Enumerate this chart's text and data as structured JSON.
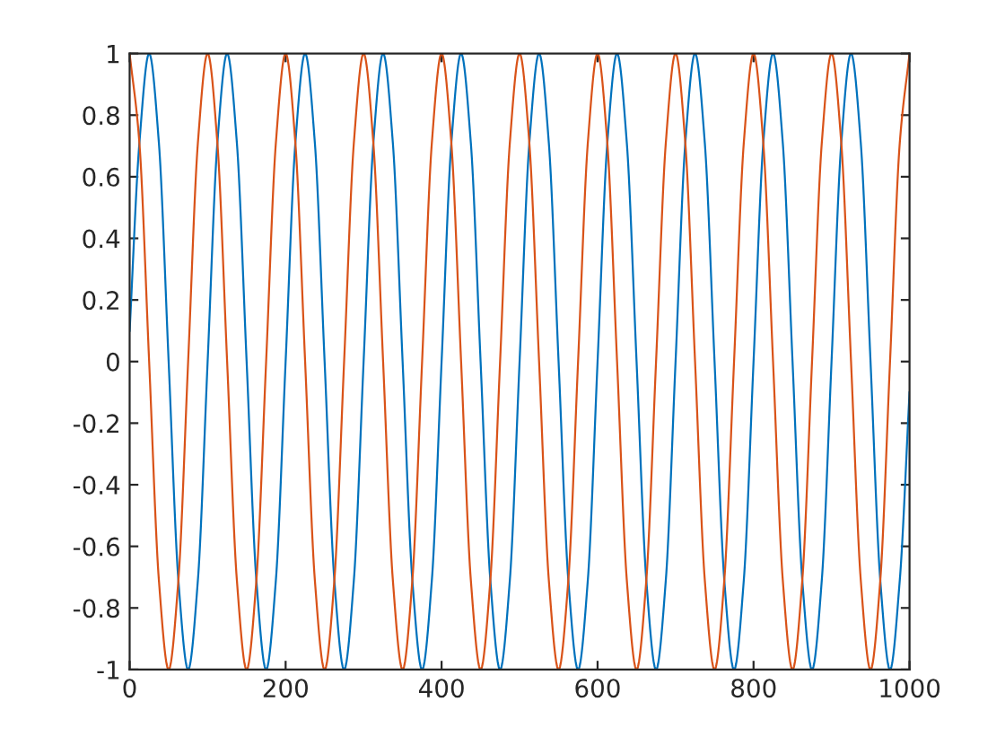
{
  "chart_data": {
    "type": "line",
    "x": [
      0,
      12.5,
      25,
      37.5,
      50,
      62.5,
      75,
      87.5,
      100,
      112.5,
      125,
      137.5,
      150,
      162.5,
      175,
      187.5,
      200,
      212.5,
      225,
      237.5,
      250,
      262.5,
      275,
      287.5,
      300,
      312.5,
      325,
      337.5,
      350,
      362.5,
      375,
      387.5,
      400,
      412.5,
      425,
      437.5,
      450,
      462.5,
      475,
      487.5,
      500,
      512.5,
      525,
      537.5,
      550,
      562.5,
      575,
      587.5,
      600,
      612.5,
      625,
      637.5,
      650,
      662.5,
      675,
      687.5,
      700,
      712.5,
      725,
      737.5,
      750,
      762.5,
      775,
      787.5,
      800,
      812.5,
      825,
      837.5,
      850,
      862.5,
      875,
      887.5,
      900,
      912.5,
      925,
      937.5,
      950,
      962.5,
      975,
      987.5,
      1000
    ],
    "series": [
      {
        "color": "#0072bd",
        "values": [
          0.1,
          0.71,
          1,
          0.71,
          0,
          -0.71,
          -1,
          -0.71,
          0,
          0.71,
          1,
          0.71,
          0,
          -0.71,
          -1,
          -0.71,
          0,
          0.71,
          1,
          0.71,
          0,
          -0.71,
          -1,
          -0.71,
          0,
          0.71,
          1,
          0.71,
          0,
          -0.71,
          -1,
          -0.71,
          0,
          0.71,
          1,
          0.71,
          0,
          -0.71,
          -1,
          -0.71,
          0,
          0.71,
          1,
          0.71,
          0,
          -0.71,
          -1,
          -0.71,
          0,
          0.71,
          1,
          0.71,
          0,
          -0.71,
          -1,
          -0.71,
          0,
          0.71,
          1,
          0.71,
          0,
          -0.71,
          -1,
          -0.71,
          0,
          0.71,
          1,
          0.71,
          0,
          -0.71,
          -1,
          -0.71,
          0,
          0.71,
          1,
          0.71,
          0,
          -0.71,
          -1,
          -0.71,
          -0.1
        ]
      },
      {
        "color": "#d95319",
        "values": [
          1,
          0.71,
          0,
          -0.71,
          -1,
          -0.71,
          0,
          0.71,
          1,
          0.71,
          0,
          -0.71,
          -1,
          -0.71,
          0,
          0.71,
          1,
          0.71,
          0,
          -0.71,
          -1,
          -0.71,
          0,
          0.71,
          1,
          0.71,
          0,
          -0.71,
          -1,
          -0.71,
          0,
          0.71,
          1,
          0.71,
          0,
          -0.71,
          -1,
          -0.71,
          0,
          0.71,
          1,
          0.71,
          0,
          -0.71,
          -1,
          -0.71,
          0,
          0.71,
          1,
          0.71,
          0,
          -0.71,
          -1,
          -0.71,
          0,
          0.71,
          1,
          0.71,
          0,
          -0.71,
          -1,
          -0.71,
          0,
          0.71,
          1,
          0.71,
          0,
          -0.71,
          -1,
          -0.71,
          0,
          0.71,
          1,
          0.71,
          0,
          -0.71,
          -1,
          -0.71,
          0,
          0.71,
          1
        ]
      }
    ],
    "xlim": [
      0,
      1000
    ],
    "xticks": [
      0,
      200,
      400,
      600,
      800,
      1000
    ],
    "ylim": [
      -1,
      1
    ],
    "yticks": [
      -1,
      -0.8,
      -0.6,
      -0.4,
      -0.2,
      0,
      0.2,
      0.4,
      0.6,
      0.8,
      1
    ],
    "grid": false,
    "legend": false,
    "marker": "none",
    "line_style": "solid"
  }
}
